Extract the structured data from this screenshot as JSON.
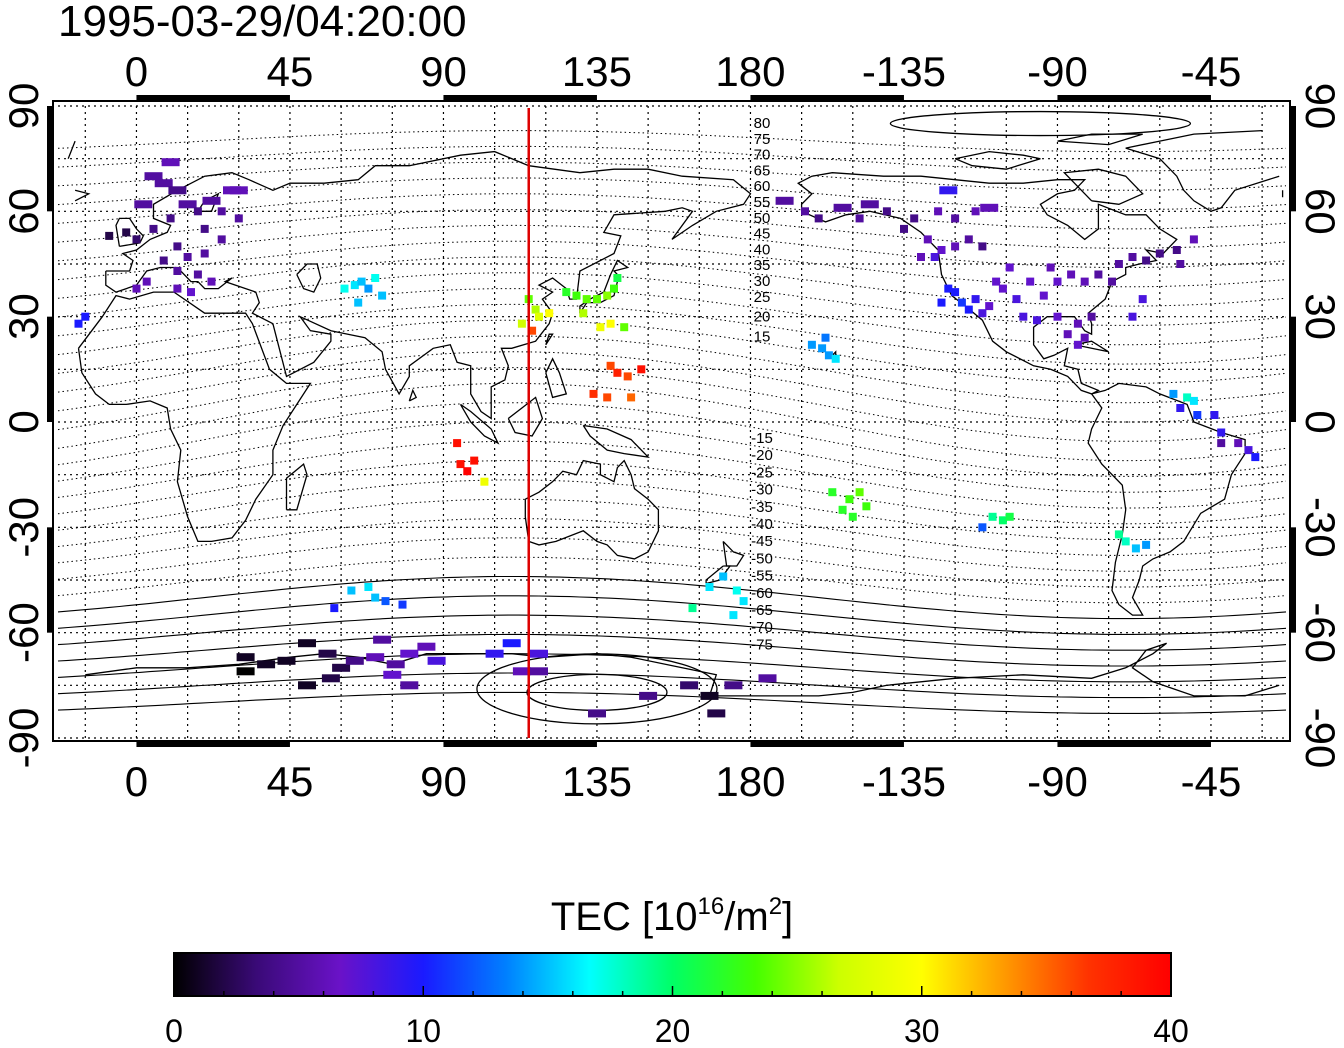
{
  "title": "1995-03-29/04:20:00",
  "axes": {
    "x_ticks": [
      "0",
      "45",
      "90",
      "135",
      "180",
      "-135",
      "-90",
      "-45"
    ],
    "y_ticks": [
      "90",
      "60",
      "30",
      "0",
      "-30",
      "-60",
      "-90"
    ]
  },
  "mag_lat_labels_north": [
    "80",
    "75",
    "70",
    "65",
    "60",
    "55",
    "50",
    "45",
    "40",
    "35",
    "30",
    "25",
    "20",
    "15"
  ],
  "mag_lat_labels_south": [
    "-15",
    "-20",
    "-25",
    "-30",
    "-35",
    "-40",
    "-45",
    "-50",
    "-55",
    "-60",
    "-65",
    "-70",
    "-75"
  ],
  "colorbar": {
    "title_prefix": "TEC  [10",
    "title_sup1": "16",
    "title_mid": "/m",
    "title_sup2": "2",
    "title_suffix": "]",
    "ticks": [
      "0",
      "10",
      "20",
      "30",
      "40"
    ],
    "colors": [
      "#000000",
      "#3a0a78",
      "#6a12c8",
      "#1a1aff",
      "#0080ff",
      "#00ffff",
      "#00ff66",
      "#44ff00",
      "#ccff00",
      "#ffff00",
      "#ff9900",
      "#ff3300",
      "#ff0000"
    ]
  },
  "marker_line": {
    "longitude_deg": 115,
    "color": "#dd0000"
  },
  "chart_data": {
    "type": "scatter",
    "x_label": "",
    "y_label": "",
    "xlim_display": [
      -23,
      337
    ],
    "ylim": [
      -90,
      90
    ],
    "color_scale": {
      "min": 0,
      "max": 40,
      "units": "TEC"
    },
    "points": [
      {
        "lon": 5,
        "lat": 70,
        "tec": 5
      },
      {
        "lon": 8,
        "lat": 68,
        "tec": 5
      },
      {
        "lon": 12,
        "lat": 66,
        "tec": 4
      },
      {
        "lon": 15,
        "lat": 62,
        "tec": 5
      },
      {
        "lon": 18,
        "lat": 60,
        "tec": 4
      },
      {
        "lon": 22,
        "lat": 63,
        "tec": 5
      },
      {
        "lon": 25,
        "lat": 60,
        "tec": 5
      },
      {
        "lon": 28,
        "lat": 66,
        "tec": 6
      },
      {
        "lon": 10,
        "lat": 58,
        "tec": 4
      },
      {
        "lon": 5,
        "lat": 55,
        "tec": 4
      },
      {
        "lon": 0,
        "lat": 52,
        "tec": 3
      },
      {
        "lon": -3,
        "lat": 54,
        "tec": 2
      },
      {
        "lon": -8,
        "lat": 53,
        "tec": 2
      },
      {
        "lon": 12,
        "lat": 50,
        "tec": 4
      },
      {
        "lon": 15,
        "lat": 47,
        "tec": 5
      },
      {
        "lon": 20,
        "lat": 48,
        "tec": 5
      },
      {
        "lon": 8,
        "lat": 46,
        "tec": 4
      },
      {
        "lon": 12,
        "lat": 43,
        "tec": 5
      },
      {
        "lon": 18,
        "lat": 42,
        "tec": 5
      },
      {
        "lon": 25,
        "lat": 52,
        "tec": 5
      },
      {
        "lon": 30,
        "lat": 58,
        "tec": 5
      },
      {
        "lon": 20,
        "lat": 55,
        "tec": 4
      },
      {
        "lon": 2,
        "lat": 62,
        "tec": 5
      },
      {
        "lon": 10,
        "lat": 74,
        "tec": 6
      },
      {
        "lon": 16,
        "lat": 37,
        "tec": 7
      },
      {
        "lon": 12,
        "lat": 38,
        "tec": 6
      },
      {
        "lon": 0,
        "lat": 38,
        "tec": 6
      },
      {
        "lon": 3,
        "lat": 40,
        "tec": 6
      },
      {
        "lon": 22,
        "lat": 40,
        "tec": 6
      },
      {
        "lon": 30,
        "lat": 66,
        "tec": 6
      },
      {
        "lon": -17,
        "lat": 28,
        "tec": 10
      },
      {
        "lon": -15,
        "lat": 30,
        "tec": 10
      },
      {
        "lon": 61,
        "lat": 38,
        "tec": 17
      },
      {
        "lon": 64,
        "lat": 39,
        "tec": 16
      },
      {
        "lon": 66,
        "lat": 40,
        "tec": 15
      },
      {
        "lon": 68,
        "lat": 38,
        "tec": 14
      },
      {
        "lon": 70,
        "lat": 41,
        "tec": 17
      },
      {
        "lon": 72,
        "lat": 36,
        "tec": 15
      },
      {
        "lon": 65,
        "lat": 34,
        "tec": 15
      },
      {
        "lon": 115,
        "lat": 35,
        "tec": 24
      },
      {
        "lon": 117,
        "lat": 32,
        "tec": 26
      },
      {
        "lon": 118,
        "lat": 30,
        "tec": 28
      },
      {
        "lon": 121,
        "lat": 31,
        "tec": 30
      },
      {
        "lon": 113,
        "lat": 28,
        "tec": 27
      },
      {
        "lon": 116,
        "lat": 26,
        "tec": 36
      },
      {
        "lon": 126,
        "lat": 37,
        "tec": 22
      },
      {
        "lon": 129,
        "lat": 36,
        "tec": 23
      },
      {
        "lon": 132,
        "lat": 35,
        "tec": 24
      },
      {
        "lon": 135,
        "lat": 35,
        "tec": 24
      },
      {
        "lon": 138,
        "lat": 36,
        "tec": 25
      },
      {
        "lon": 140,
        "lat": 38,
        "tec": 23
      },
      {
        "lon": 141,
        "lat": 41,
        "tec": 21
      },
      {
        "lon": 131,
        "lat": 31,
        "tec": 26
      },
      {
        "lon": 136,
        "lat": 27,
        "tec": 29
      },
      {
        "lon": 139,
        "lat": 28,
        "tec": 30
      },
      {
        "lon": 143,
        "lat": 27,
        "tec": 24
      },
      {
        "lon": 139,
        "lat": 16,
        "tec": 36
      },
      {
        "lon": 141,
        "lat": 14,
        "tec": 38
      },
      {
        "lon": 144,
        "lat": 13,
        "tec": 36
      },
      {
        "lon": 148,
        "lat": 15,
        "tec": 39
      },
      {
        "lon": 134,
        "lat": 8,
        "tec": 37
      },
      {
        "lon": 138,
        "lat": 7,
        "tec": 36
      },
      {
        "lon": 145,
        "lat": 7,
        "tec": 35
      },
      {
        "lon": 94,
        "lat": -6,
        "tec": 39
      },
      {
        "lon": 95,
        "lat": -12,
        "tec": 39
      },
      {
        "lon": 97,
        "lat": -14,
        "tec": 40
      },
      {
        "lon": 99,
        "lat": -11,
        "tec": 39
      },
      {
        "lon": 102,
        "lat": -17,
        "tec": 29
      },
      {
        "lon": 63,
        "lat": -48,
        "tec": 15
      },
      {
        "lon": 68,
        "lat": -47,
        "tec": 16
      },
      {
        "lon": 70,
        "lat": -50,
        "tec": 15
      },
      {
        "lon": 73,
        "lat": -51,
        "tec": 12
      },
      {
        "lon": 78,
        "lat": -52,
        "tec": 11
      },
      {
        "lon": 58,
        "lat": -53,
        "tec": 10
      },
      {
        "lon": 163,
        "lat": -53,
        "tec": 19
      },
      {
        "lon": 168,
        "lat": -47,
        "tec": 16
      },
      {
        "lon": 172,
        "lat": -44,
        "tec": 15
      },
      {
        "lon": 176,
        "lat": -48,
        "tec": 17
      },
      {
        "lon": 178,
        "lat": -51,
        "tec": 16
      },
      {
        "lon": 175,
        "lat": -55,
        "tec": 16
      },
      {
        "lon": 32,
        "lat": -67,
        "tec": 1
      },
      {
        "lon": 38,
        "lat": -69,
        "tec": 1
      },
      {
        "lon": 44,
        "lat": -68,
        "tec": 1
      },
      {
        "lon": 50,
        "lat": -63,
        "tec": 1
      },
      {
        "lon": 56,
        "lat": -66,
        "tec": 2
      },
      {
        "lon": 60,
        "lat": -70,
        "tec": 2
      },
      {
        "lon": 64,
        "lat": -68,
        "tec": 4
      },
      {
        "lon": 72,
        "lat": -62,
        "tec": 5
      },
      {
        "lon": 70,
        "lat": -67,
        "tec": 6
      },
      {
        "lon": 76,
        "lat": -69,
        "tec": 5
      },
      {
        "lon": 80,
        "lat": -66,
        "tec": 7
      },
      {
        "lon": 85,
        "lat": -64,
        "tec": 6
      },
      {
        "lon": 88,
        "lat": -68,
        "tec": 8
      },
      {
        "lon": 75,
        "lat": -72,
        "tec": 7
      },
      {
        "lon": 80,
        "lat": -75,
        "tec": 5
      },
      {
        "lon": 50,
        "lat": -75,
        "tec": 1
      },
      {
        "lon": 57,
        "lat": -73,
        "tec": 2
      },
      {
        "lon": 32,
        "lat": -71,
        "tec": 0
      },
      {
        "lon": 105,
        "lat": -66,
        "tec": 9
      },
      {
        "lon": 110,
        "lat": -63,
        "tec": 10
      },
      {
        "lon": 113,
        "lat": -71,
        "tec": 6
      },
      {
        "lon": 118,
        "lat": -71,
        "tec": 5
      },
      {
        "lon": 118,
        "lat": -66,
        "tec": 8
      },
      {
        "lon": 135,
        "lat": -83,
        "tec": 4
      },
      {
        "lon": 150,
        "lat": -78,
        "tec": 4
      },
      {
        "lon": 162,
        "lat": -75,
        "tec": 3
      },
      {
        "lon": 168,
        "lat": -78,
        "tec": 1
      },
      {
        "lon": 170,
        "lat": -83,
        "tec": 2
      },
      {
        "lon": 175,
        "lat": -75,
        "tec": 4
      },
      {
        "lon": 185,
        "lat": -73,
        "tec": 5
      },
      {
        "lon": 190,
        "lat": 63,
        "tec": 5
      },
      {
        "lon": 196,
        "lat": 60,
        "tec": 5
      },
      {
        "lon": 200,
        "lat": 58,
        "tec": 4
      },
      {
        "lon": 207,
        "lat": 61,
        "tec": 5
      },
      {
        "lon": 212,
        "lat": 58,
        "tec": 5
      },
      {
        "lon": 215,
        "lat": 62,
        "tec": 5
      },
      {
        "lon": 220,
        "lat": 60,
        "tec": 4
      },
      {
        "lon": 228,
        "lat": 58,
        "tec": 4
      },
      {
        "lon": 225,
        "lat": 55,
        "tec": 4
      },
      {
        "lon": 235,
        "lat": 60,
        "tec": 6
      },
      {
        "lon": 240,
        "lat": 58,
        "tec": 5
      },
      {
        "lon": 232,
        "lat": 52,
        "tec": 6
      },
      {
        "lon": 236,
        "lat": 49,
        "tec": 7
      },
      {
        "lon": 240,
        "lat": 50,
        "tec": 6
      },
      {
        "lon": 244,
        "lat": 52,
        "tec": 5
      },
      {
        "lon": 246,
        "lat": 60,
        "tec": 6
      },
      {
        "lon": 250,
        "lat": 61,
        "tec": 6
      },
      {
        "lon": 248,
        "lat": 50,
        "tec": 4
      },
      {
        "lon": 238,
        "lat": 66,
        "tec": 9
      },
      {
        "lon": 234,
        "lat": 47,
        "tec": 8
      },
      {
        "lon": 230,
        "lat": 47,
        "tec": 6
      },
      {
        "lon": 240,
        "lat": 37,
        "tec": 10
      },
      {
        "lon": 242,
        "lat": 34,
        "tec": 11
      },
      {
        "lon": 238,
        "lat": 38,
        "tec": 10
      },
      {
        "lon": 244,
        "lat": 32,
        "tec": 10
      },
      {
        "lon": 236,
        "lat": 34,
        "tec": 10
      },
      {
        "lon": 246,
        "lat": 35,
        "tec": 9
      },
      {
        "lon": 248,
        "lat": 31,
        "tec": 8
      },
      {
        "lon": 250,
        "lat": 33,
        "tec": 7
      },
      {
        "lon": 254,
        "lat": 38,
        "tec": 7
      },
      {
        "lon": 258,
        "lat": 35,
        "tec": 8
      },
      {
        "lon": 262,
        "lat": 40,
        "tec": 7
      },
      {
        "lon": 266,
        "lat": 36,
        "tec": 7
      },
      {
        "lon": 270,
        "lat": 40,
        "tec": 7
      },
      {
        "lon": 274,
        "lat": 42,
        "tec": 6
      },
      {
        "lon": 278,
        "lat": 40,
        "tec": 6
      },
      {
        "lon": 282,
        "lat": 42,
        "tec": 5
      },
      {
        "lon": 286,
        "lat": 40,
        "tec": 5
      },
      {
        "lon": 260,
        "lat": 30,
        "tec": 8
      },
      {
        "lon": 264,
        "lat": 29,
        "tec": 8
      },
      {
        "lon": 270,
        "lat": 30,
        "tec": 7
      },
      {
        "lon": 276,
        "lat": 28,
        "tec": 6
      },
      {
        "lon": 280,
        "lat": 30,
        "tec": 5
      },
      {
        "lon": 288,
        "lat": 45,
        "tec": 5
      },
      {
        "lon": 292,
        "lat": 47,
        "tec": 5
      },
      {
        "lon": 296,
        "lat": 46,
        "tec": 4
      },
      {
        "lon": 300,
        "lat": 48,
        "tec": 4
      },
      {
        "lon": 305,
        "lat": 49,
        "tec": 4
      },
      {
        "lon": 306,
        "lat": 45,
        "tec": 5
      },
      {
        "lon": 310,
        "lat": 52,
        "tec": 6
      },
      {
        "lon": 268,
        "lat": 44,
        "tec": 6
      },
      {
        "lon": 256,
        "lat": 44,
        "tec": 7
      },
      {
        "lon": 252,
        "lat": 40,
        "tec": 7
      },
      {
        "lon": 276,
        "lat": 22,
        "tec": 7
      },
      {
        "lon": 273,
        "lat": 25,
        "tec": 6
      },
      {
        "lon": 278,
        "lat": 24,
        "tec": 6
      },
      {
        "lon": 292,
        "lat": 30,
        "tec": 8
      },
      {
        "lon": 295,
        "lat": 35,
        "tec": 8
      },
      {
        "lon": 201,
        "lat": 21,
        "tec": 14
      },
      {
        "lon": 203,
        "lat": 19,
        "tec": 14
      },
      {
        "lon": 205,
        "lat": 18,
        "tec": 16
      },
      {
        "lon": 202,
        "lat": 24,
        "tec": 13
      },
      {
        "lon": 198,
        "lat": 22,
        "tec": 14
      },
      {
        "lon": 207,
        "lat": -25,
        "tec": 22
      },
      {
        "lon": 209,
        "lat": -22,
        "tec": 23
      },
      {
        "lon": 212,
        "lat": -20,
        "tec": 24
      },
      {
        "lon": 210,
        "lat": -27,
        "tec": 22
      },
      {
        "lon": 214,
        "lat": -24,
        "tec": 23
      },
      {
        "lon": 204,
        "lat": -20,
        "tec": 22
      },
      {
        "lon": 251,
        "lat": -27,
        "tec": 19
      },
      {
        "lon": 254,
        "lat": -28,
        "tec": 20
      },
      {
        "lon": 256,
        "lat": -27,
        "tec": 21
      },
      {
        "lon": 248,
        "lat": -30,
        "tec": 12
      },
      {
        "lon": 290,
        "lat": -34,
        "tec": 18
      },
      {
        "lon": 293,
        "lat": -36,
        "tec": 15
      },
      {
        "lon": 296,
        "lat": -35,
        "tec": 14
      },
      {
        "lon": 288,
        "lat": -32,
        "tec": 19
      },
      {
        "lon": 304,
        "lat": 8,
        "tec": 14
      },
      {
        "lon": 308,
        "lat": 7,
        "tec": 18
      },
      {
        "lon": 310,
        "lat": 6,
        "tec": 16
      },
      {
        "lon": 306,
        "lat": 4,
        "tec": 9
      },
      {
        "lon": 311,
        "lat": 2,
        "tec": 11
      },
      {
        "lon": 316,
        "lat": 2,
        "tec": 9
      },
      {
        "lon": 318,
        "lat": -3,
        "tec": 9
      },
      {
        "lon": 323,
        "lat": -6,
        "tec": 6
      },
      {
        "lon": 326,
        "lat": -8,
        "tec": 8
      },
      {
        "lon": 318,
        "lat": -6,
        "tec": 5
      },
      {
        "lon": 328,
        "lat": -10,
        "tec": 10
      }
    ]
  }
}
